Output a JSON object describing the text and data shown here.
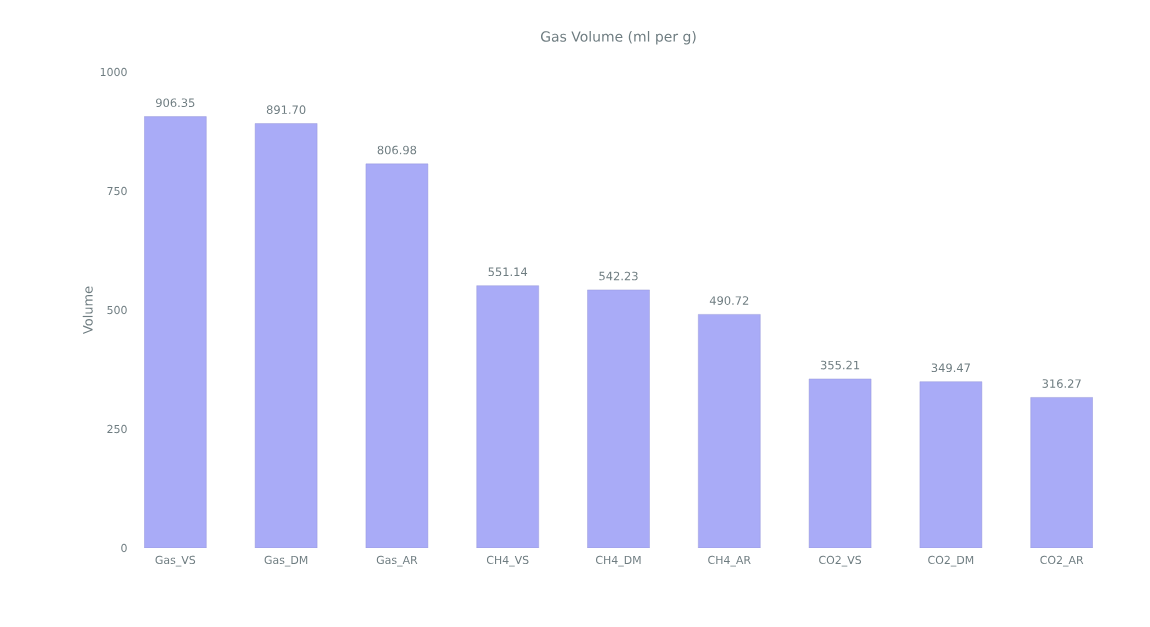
{
  "chart_data": {
    "type": "bar",
    "title": "Gas Volume (ml per g)",
    "ylabel": "Volume",
    "categories": [
      "Gas_VS",
      "Gas_DM",
      "Gas_AR",
      "CH4_VS",
      "CH4_DM",
      "CH4_AR",
      "CO2_VS",
      "CO2_DM",
      "CO2_AR"
    ],
    "values": [
      906.35,
      891.7,
      806.98,
      551.14,
      542.23,
      490.72,
      355.21,
      349.47,
      316.27
    ],
    "value_labels": [
      "906.35",
      "891.70",
      "806.98",
      "551.14",
      "542.23",
      "490.72",
      "355.21",
      "349.47",
      "316.27"
    ],
    "color": "#a9abf7",
    "ylim": [
      0,
      1000
    ],
    "yticks": [
      0,
      250,
      500,
      750,
      1000
    ],
    "grid": false
  }
}
